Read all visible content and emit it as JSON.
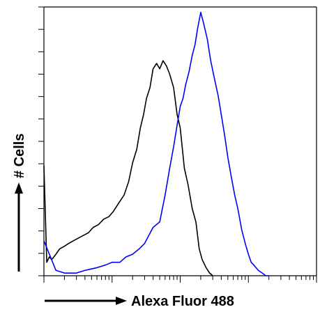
{
  "chart_data": {
    "type": "line",
    "title": "",
    "xlabel": "Alexa Fluor 488",
    "ylabel": "# Cells",
    "x_scale": "log",
    "xlim": [
      1,
      10000
    ],
    "ylim": [
      0,
      100
    ],
    "grid": false,
    "legend": "none",
    "series": [
      {
        "color": "#000000",
        "x": [
          1.0,
          1.1,
          1.2,
          1.3,
          1.5,
          1.7,
          2,
          2.3,
          2.7,
          3.2,
          3.8,
          4.5,
          5.3,
          6.3,
          7.5,
          9,
          10.5,
          12.5,
          15,
          17.5,
          20,
          23,
          26,
          29,
          32,
          36,
          40,
          45,
          50,
          56,
          63,
          70,
          80,
          90,
          100,
          115,
          130,
          150,
          170,
          190,
          210,
          240,
          270,
          300
        ],
        "y": [
          41,
          5,
          7,
          6,
          8,
          10,
          11,
          12,
          13,
          14,
          15,
          16,
          18,
          19,
          21,
          22,
          24,
          27,
          30,
          35,
          42,
          47,
          55,
          60,
          66,
          70,
          77,
          79,
          77,
          80,
          78,
          75,
          70,
          60,
          55,
          40,
          34,
          25,
          20,
          10,
          6,
          3,
          1,
          0
        ]
      },
      {
        "color": "#0000ff",
        "x": [
          1.0,
          1.5,
          2,
          3,
          4,
          6,
          8,
          10,
          13,
          16,
          20,
          25,
          30,
          40,
          50,
          60,
          70,
          80,
          90,
          100,
          110,
          120,
          135,
          150,
          165,
          180,
          200,
          220,
          250,
          280,
          320,
          360,
          400,
          450,
          500,
          560,
          630,
          700,
          800,
          900,
          1000,
          1100,
          1200,
          1400,
          1600,
          1800,
          2000
        ],
        "y": [
          13,
          2,
          1,
          1,
          2,
          3,
          4,
          5,
          5,
          7,
          8,
          10,
          12,
          18,
          20,
          30,
          40,
          48,
          56,
          63,
          66,
          71,
          76,
          82,
          86,
          92,
          98,
          94,
          88,
          80,
          73,
          67,
          60,
          52,
          44,
          37,
          30,
          25,
          17,
          12,
          8,
          5,
          4,
          2,
          1,
          0,
          0
        ]
      }
    ]
  }
}
